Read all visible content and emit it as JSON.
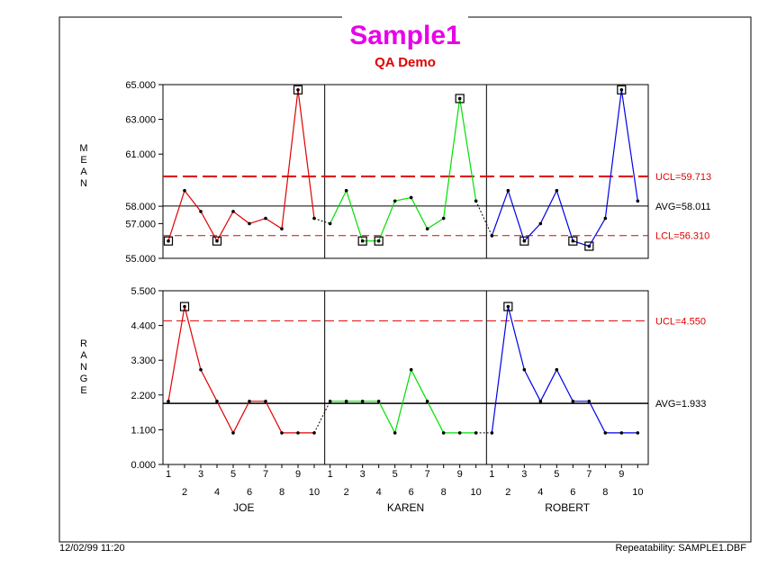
{
  "title": "Sample1",
  "subtitle": "QA Demo",
  "footer": {
    "date": "12/02/99 11:20",
    "source": "Repeatability: SAMPLE1.DBF"
  },
  "colors": {
    "title": "#e800e8",
    "subtitle": "#e00000",
    "control_limits": "#e00000",
    "series": [
      "#e00000",
      "#00e000",
      "#0000e8"
    ]
  },
  "chart_data": [
    {
      "type": "line",
      "name": "mean",
      "ylabel": "MEAN",
      "ylim": [
        55.0,
        65.0
      ],
      "yticks": [
        "55.000",
        "57.000",
        "58.000",
        "61.000",
        "63.000",
        "65.000"
      ],
      "ytick_values": [
        55,
        57,
        58,
        61,
        63,
        65
      ],
      "x": [
        1,
        2,
        3,
        4,
        5,
        6,
        7,
        8,
        9,
        10
      ],
      "groups": [
        "JOE",
        "KAREN",
        "ROBERT"
      ],
      "series": [
        {
          "name": "JOE",
          "values": [
            56.0,
            58.9,
            57.7,
            56.0,
            57.7,
            57.0,
            57.3,
            56.7,
            64.7,
            57.3
          ],
          "flagged": [
            1,
            4,
            9
          ]
        },
        {
          "name": "KAREN",
          "values": [
            57.0,
            58.9,
            56.0,
            56.0,
            58.3,
            58.5,
            56.7,
            57.3,
            64.2,
            58.3
          ],
          "flagged": [
            3,
            4,
            9
          ]
        },
        {
          "name": "ROBERT",
          "values": [
            56.3,
            58.9,
            56.0,
            57.0,
            58.9,
            56.0,
            55.7,
            57.3,
            64.7,
            58.3
          ],
          "flagged": [
            3,
            6,
            7,
            9
          ]
        }
      ],
      "limits": {
        "ucl": 59.713,
        "ucl_label": "UCL=59.713",
        "avg": 58.011,
        "avg_label": "AVG=58.011",
        "lcl": 56.31,
        "lcl_label": "LCL=56.310"
      }
    },
    {
      "type": "line",
      "name": "range",
      "ylabel": "RANGE",
      "ylim": [
        0.0,
        5.5
      ],
      "yticks": [
        "0.000",
        "1.100",
        "2.200",
        "3.300",
        "4.400",
        "5.500"
      ],
      "ytick_values": [
        0,
        1.1,
        2.2,
        3.3,
        4.4,
        5.5
      ],
      "x": [
        1,
        2,
        3,
        4,
        5,
        6,
        7,
        8,
        9,
        10
      ],
      "groups": [
        "JOE",
        "KAREN",
        "ROBERT"
      ],
      "series": [
        {
          "name": "JOE",
          "values": [
            2,
            5,
            3,
            2,
            1,
            2,
            2,
            1,
            1,
            1
          ],
          "flagged": [
            2
          ]
        },
        {
          "name": "KAREN",
          "values": [
            2,
            2,
            2,
            2,
            1,
            3,
            2,
            1,
            1,
            1
          ],
          "flagged": []
        },
        {
          "name": "ROBERT",
          "values": [
            1,
            5,
            3,
            2,
            3,
            2,
            2,
            1,
            1,
            1
          ],
          "flagged": [
            2
          ]
        }
      ],
      "limits": {
        "ucl": 4.55,
        "ucl_label": "UCL=4.550",
        "avg": 1.933,
        "avg_label": "AVG=1.933"
      }
    }
  ]
}
